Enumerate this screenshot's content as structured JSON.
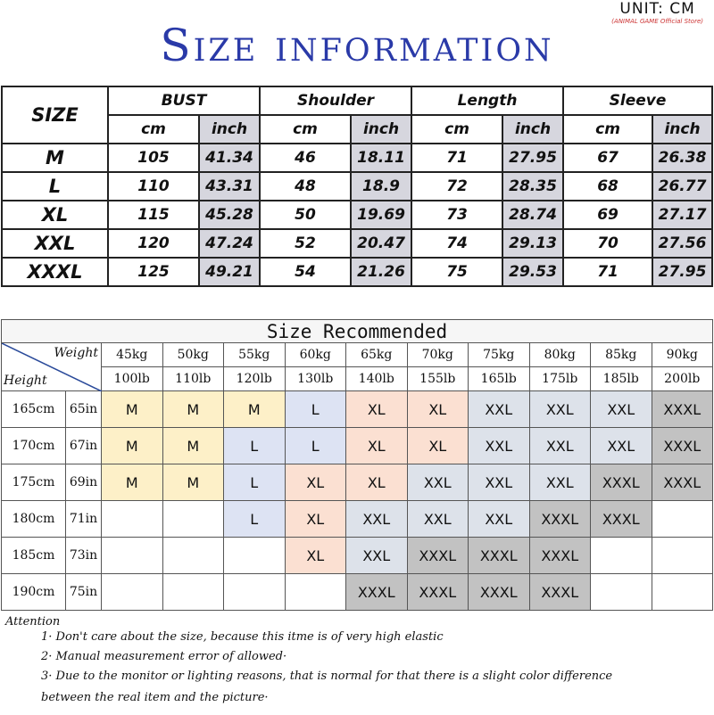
{
  "title": "Size information",
  "unit": {
    "label": "UNIT: CM",
    "store": "(ANIMAL GAME Official Store)"
  },
  "size_table": {
    "size_header": "SIZE",
    "groups": [
      "BUST",
      "Shoulder",
      "Length",
      "Sleeve"
    ],
    "subheaders": [
      "cm",
      "inch"
    ],
    "rows": [
      {
        "size": "M",
        "values": [
          "105",
          "41.34",
          "46",
          "18.11",
          "71",
          "27.95",
          "67",
          "26.38"
        ]
      },
      {
        "size": "L",
        "values": [
          "110",
          "43.31",
          "48",
          "18.9",
          "72",
          "28.35",
          "68",
          "26.77"
        ]
      },
      {
        "size": "XL",
        "values": [
          "115",
          "45.28",
          "50",
          "19.69",
          "73",
          "28.74",
          "69",
          "27.17"
        ]
      },
      {
        "size": "XXL",
        "values": [
          "120",
          "47.24",
          "52",
          "20.47",
          "74",
          "29.13",
          "70",
          "27.56"
        ]
      },
      {
        "size": "XXXL",
        "values": [
          "125",
          "49.21",
          "54",
          "21.26",
          "75",
          "29.53",
          "71",
          "27.95"
        ]
      }
    ]
  },
  "recommend": {
    "title": "Size Recommended",
    "weight_label": "Weight",
    "height_label": "Height",
    "weights_kg": [
      "45kg",
      "50kg",
      "55kg",
      "60kg",
      "65kg",
      "70kg",
      "75kg",
      "80kg",
      "85kg",
      "90kg"
    ],
    "weights_lb": [
      "100lb",
      "110lb",
      "120lb",
      "130lb",
      "140lb",
      "155lb",
      "165lb",
      "175lb",
      "185lb",
      "200lb"
    ],
    "rows": [
      {
        "cm": "165cm",
        "in": "65in",
        "sizes": [
          "M",
          "M",
          "M",
          "L",
          "XL",
          "XL",
          "XXL",
          "XXL",
          "XXL",
          "XXXL"
        ]
      },
      {
        "cm": "170cm",
        "in": "67in",
        "sizes": [
          "M",
          "M",
          "L",
          "L",
          "XL",
          "XL",
          "XXL",
          "XXL",
          "XXL",
          "XXXL"
        ]
      },
      {
        "cm": "175cm",
        "in": "69in",
        "sizes": [
          "M",
          "M",
          "L",
          "XL",
          "XL",
          "XXL",
          "XXL",
          "XXL",
          "XXXL",
          "XXXL"
        ]
      },
      {
        "cm": "180cm",
        "in": "71in",
        "sizes": [
          "",
          "",
          "L",
          "XL",
          "XXL",
          "XXL",
          "XXL",
          "XXXL",
          "XXXL",
          ""
        ]
      },
      {
        "cm": "185cm",
        "in": "73in",
        "sizes": [
          "",
          "",
          "",
          "XL",
          "XXL",
          "XXXL",
          "XXXL",
          "XXXL",
          "",
          ""
        ]
      },
      {
        "cm": "190cm",
        "in": "75in",
        "sizes": [
          "",
          "",
          "",
          "",
          "XXXL",
          "XXXL",
          "XXXL",
          "XXXL",
          "",
          ""
        ]
      }
    ],
    "colors": {
      "M": "#fdf0c8",
      "L": "#dde3f3",
      "XL": "#fbe0d2",
      "XXL": "#dde2ea",
      "XXXL": "#c2c2c2"
    }
  },
  "attention": {
    "heading": "Attention",
    "items": [
      "1· Don't care about the size, because this itme is of very high elastic",
      "2· Manual measurement error of allowed·",
      "3·  Due to the monitor or lighting reasons, that is normal for that there is a slight color difference between the real item and the picture·"
    ]
  }
}
